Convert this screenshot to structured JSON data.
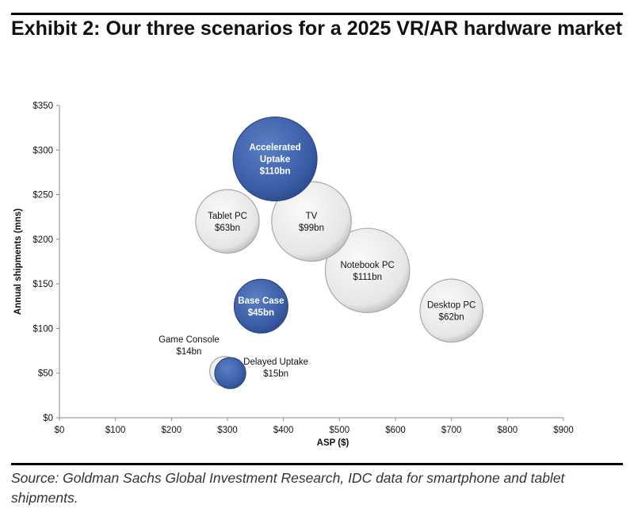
{
  "title": "Exhibit 2: Our three scenarios for a 2025 VR/AR hardware market",
  "source": "Source: Goldman Sachs Global Investment Research, IDC data for smartphone and tablet shipments.",
  "colors": {
    "scenario": "#3d5fa8",
    "device": "#ececec"
  },
  "chart_data": {
    "type": "bubble",
    "xlabel": "ASP ($)",
    "ylabel": "Annual shipments (mns)",
    "xlim": [
      0,
      900
    ],
    "ylim": [
      0,
      350
    ],
    "xticks": [
      "$0",
      "$100",
      "$200",
      "$300",
      "$400",
      "$500",
      "$600",
      "$700",
      "$800",
      "$900"
    ],
    "yticks": [
      "$0",
      "$50",
      "$100",
      "$150",
      "$200",
      "$250",
      "$300",
      "$350"
    ],
    "grid": false,
    "points": [
      {
        "name": "Game Console",
        "value_label": "$14bn",
        "size_bn": 14,
        "x": 295,
        "y": 52,
        "kind": "device",
        "label_pos": "upper-left"
      },
      {
        "name": "Delayed Uptake",
        "value_label": "$15bn",
        "size_bn": 15,
        "x": 305,
        "y": 50,
        "kind": "scenario",
        "label_pos": "right"
      },
      {
        "name": "Base Case",
        "value_label": "$45bn",
        "size_bn": 45,
        "x": 360,
        "y": 125,
        "kind": "scenario",
        "label_pos": "center"
      },
      {
        "name": "Tablet PC",
        "value_label": "$63bn",
        "size_bn": 63,
        "x": 300,
        "y": 220,
        "kind": "device",
        "label_pos": "center"
      },
      {
        "name": "Desktop PC",
        "value_label": "$62bn",
        "size_bn": 62,
        "x": 700,
        "y": 120,
        "kind": "device",
        "label_pos": "center"
      },
      {
        "name": "Notebook PC",
        "value_label": "$111bn",
        "size_bn": 111,
        "x": 550,
        "y": 165,
        "kind": "device",
        "label_pos": "center"
      },
      {
        "name": "TV",
        "value_label": "$99bn",
        "size_bn": 99,
        "x": 450,
        "y": 220,
        "kind": "device",
        "label_pos": "center"
      },
      {
        "name": "Accelerated Uptake",
        "value_label": "$110bn",
        "size_bn": 110,
        "x": 385,
        "y": 290,
        "kind": "scenario",
        "label_pos": "center"
      }
    ]
  }
}
